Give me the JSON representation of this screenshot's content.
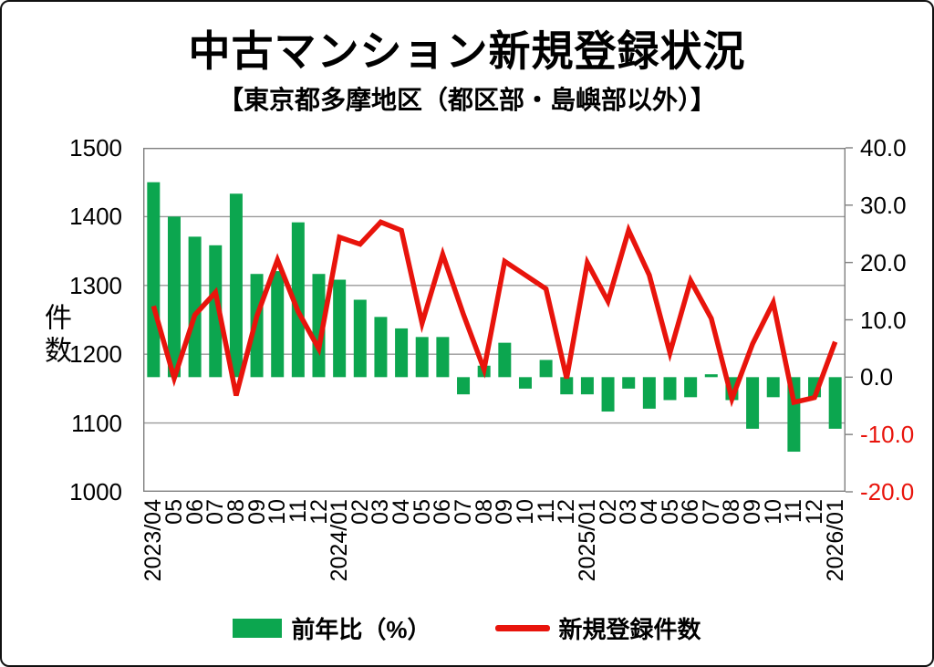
{
  "title": "中古マンション新規登録状況",
  "subtitle": "【東京都多摩地区（都区部・島嶼部以外）】",
  "colors": {
    "bar_green": "#0ca64f",
    "line_red": "#e8140c",
    "grid": "#9a9a9a",
    "axis": "#7f7f7f",
    "negative_tick_text": "#e8140c",
    "text": "#000000",
    "background": "#ffffff"
  },
  "legend": {
    "bar_label": "前年比（%）",
    "line_label": "新規登録件数"
  },
  "chart_data": {
    "type": "bar+line",
    "categories": [
      "2023/04",
      "05",
      "06",
      "07",
      "08",
      "09",
      "10",
      "11",
      "12",
      "2024/01",
      "02",
      "03",
      "04",
      "05",
      "06",
      "07",
      "08",
      "09",
      "10",
      "11",
      "12",
      "2025/01",
      "02",
      "03",
      "04",
      "05",
      "06",
      "07",
      "08",
      "09",
      "10",
      "11",
      "12",
      "2026/01"
    ],
    "series": [
      {
        "name": "前年比（%）",
        "type": "bar",
        "axis": "right",
        "color": "#0ca64f",
        "values": [
          34,
          28,
          24.5,
          23,
          32,
          18,
          18.5,
          27,
          18,
          17,
          13.5,
          10.5,
          8.5,
          7,
          7,
          -3,
          2,
          6,
          -2,
          3,
          -3,
          -3,
          -6,
          -2,
          -5.5,
          -4,
          -3.5,
          0.5,
          -4,
          -9,
          -3.5,
          -13,
          -3.5,
          -9
        ]
      },
      {
        "name": "新規登録件数",
        "type": "line",
        "axis": "left",
        "color": "#e8140c",
        "values": [
          1270,
          1165,
          1257,
          1290,
          1140,
          1255,
          1337,
          1262,
          1208,
          1370,
          1360,
          1392,
          1380,
          1245,
          1345,
          1258,
          1178,
          1335,
          1315,
          1295,
          1165,
          1333,
          1277,
          1380,
          1315,
          1202,
          1307,
          1252,
          1135,
          1215,
          1275,
          1130,
          1137,
          1218
        ]
      }
    ],
    "left_axis": {
      "label": "件数",
      "lim": [
        1000,
        1500
      ],
      "ticks": [
        1500,
        1400,
        1300,
        1200,
        1100,
        1000
      ]
    },
    "right_axis": {
      "lim": [
        -20,
        40
      ],
      "ticks": [
        40,
        30,
        20,
        10,
        0,
        -10,
        -20
      ]
    },
    "grid": true,
    "legend_position": "bottom"
  }
}
